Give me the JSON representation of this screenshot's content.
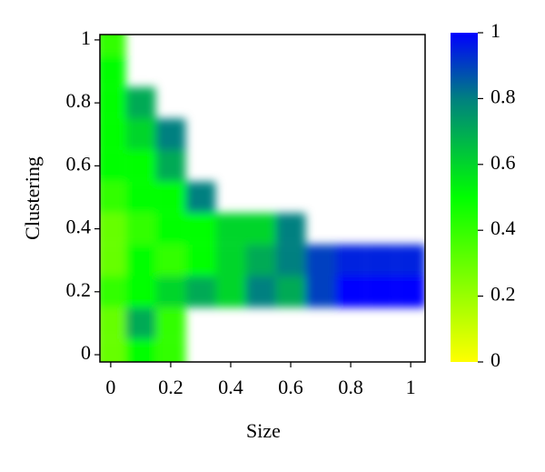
{
  "chart_data": {
    "type": "heatmap",
    "xlabel": "Size",
    "ylabel": "Clustering",
    "x": [
      0,
      0.1,
      0.2,
      0.3,
      0.4,
      0.5,
      0.6,
      0.7,
      0.8,
      0.9,
      1
    ],
    "y": [
      0,
      0.1,
      0.2,
      0.3,
      0.4,
      0.5,
      0.6,
      0.7,
      0.8,
      0.9,
      1
    ],
    "z": [
      [
        0.3,
        0.5,
        0.4,
        null,
        null,
        null,
        null,
        null,
        null,
        null,
        null
      ],
      [
        0.3,
        0.7,
        0.4,
        null,
        null,
        null,
        null,
        null,
        null,
        null,
        null
      ],
      [
        0.4,
        0.5,
        0.6,
        0.7,
        0.6,
        0.8,
        0.7,
        0.9,
        1,
        1,
        1
      ],
      [
        0.3,
        0.5,
        0.4,
        0.5,
        0.6,
        0.7,
        0.8,
        0.9,
        0.95,
        0.95,
        0.95
      ],
      [
        0.3,
        0.4,
        0.5,
        0.5,
        0.6,
        0.6,
        0.8,
        null,
        null,
        null,
        null
      ],
      [
        0.4,
        0.5,
        0.5,
        0.8,
        null,
        null,
        null,
        null,
        null,
        null,
        null
      ],
      [
        0.5,
        0.5,
        0.7,
        null,
        null,
        null,
        null,
        null,
        null,
        null,
        null
      ],
      [
        0.5,
        0.6,
        0.8,
        null,
        null,
        null,
        null,
        null,
        null,
        null,
        null
      ],
      [
        0.5,
        0.7,
        null,
        null,
        null,
        null,
        null,
        null,
        null,
        null,
        null
      ],
      [
        0.5,
        null,
        null,
        null,
        null,
        null,
        null,
        null,
        null,
        null,
        null
      ],
      [
        0.4,
        null,
        null,
        null,
        null,
        null,
        null,
        null,
        null,
        null,
        null
      ]
    ],
    "xlim": [
      -0.036,
      1.048
    ],
    "ylim": [
      -0.023,
      1.017
    ],
    "xticks": [
      0,
      0.2,
      0.4,
      0.6,
      0.8,
      1
    ],
    "yticks": [
      0,
      0.2,
      0.4,
      0.6,
      0.8,
      1
    ],
    "colorbar": {
      "lim": [
        0,
        1
      ],
      "ticks": [
        0,
        0.2,
        0.4,
        0.6,
        0.8,
        1
      ],
      "colorscale": [
        [
          0,
          "#ffff00"
        ],
        [
          0.5,
          "#00ff00"
        ],
        [
          0.8,
          "#008080"
        ],
        [
          1,
          "#0000ff"
        ]
      ]
    }
  }
}
